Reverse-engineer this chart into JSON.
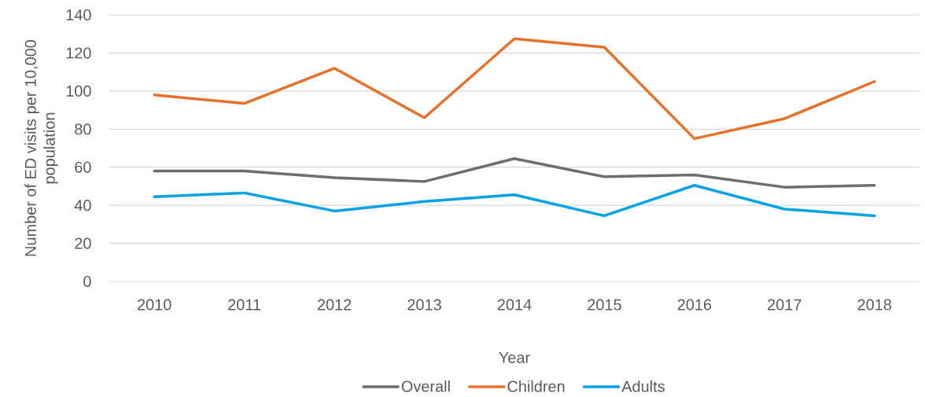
{
  "chart_data": {
    "type": "line",
    "xlabel": "Year",
    "ylabel": "Number of ED visits per 10,000 population",
    "categories": [
      "2010",
      "2011",
      "2012",
      "2013",
      "2014",
      "2015",
      "2016",
      "2017",
      "2018"
    ],
    "series": [
      {
        "name": "Overall",
        "color": "#6e6e6e",
        "values": [
          58,
          58,
          54.5,
          52.5,
          64.5,
          55,
          56,
          49.5,
          50.5
        ]
      },
      {
        "name": "Children",
        "color": "#e5722a",
        "values": [
          98,
          93.5,
          112,
          86,
          127.5,
          123,
          75,
          85.5,
          105
        ]
      },
      {
        "name": "Adults",
        "color": "#05a2e6",
        "values": [
          44.5,
          46.5,
          37,
          42,
          45.5,
          34.5,
          50.5,
          38,
          34.5
        ]
      }
    ],
    "ylim": [
      0,
      140
    ],
    "yticks": [
      0,
      20,
      40,
      60,
      80,
      100,
      120,
      140
    ],
    "grid": "y",
    "legend": "bottom",
    "marker": "none",
    "line_style": "solid"
  }
}
